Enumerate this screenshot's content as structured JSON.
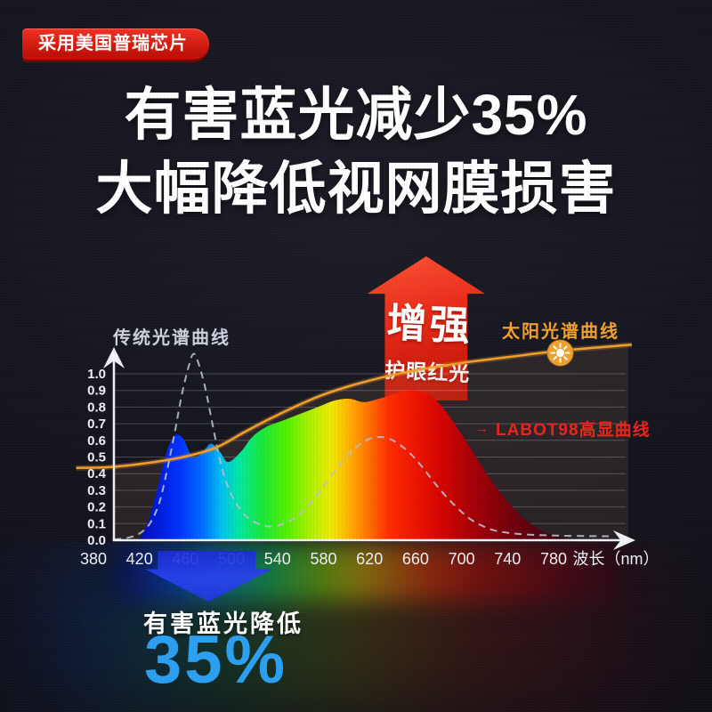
{
  "badge": {
    "label": "采用美国普瑞芯片"
  },
  "title": {
    "line1": "有害蓝光减少35%",
    "line2": "大幅降低视网膜损害"
  },
  "annotations": {
    "increase_arrow": {
      "title": "增强",
      "subtitle": "护眼红光"
    },
    "traditional_label": "传统光谱曲线",
    "solar_label": "太阳光谱曲线",
    "labot_label": "LABOT98高显曲线",
    "decrease": {
      "label": "有害蓝光降低",
      "value": "35%"
    }
  },
  "icons": {
    "labot_pointer": "→",
    "sun": "sun-icon"
  },
  "colors": {
    "background": "#15151f",
    "badge_red_light": "#f23122",
    "badge_red_dark": "#c01007",
    "arrow_red": "#e82815",
    "solar_orange": "#f2a02a",
    "labot_red": "#e8251c",
    "traditional_gray": "#b9bfce",
    "stat_blue": "#2aa0f2",
    "axis_white": "#f2f3f7"
  },
  "chart_data": {
    "type": "area",
    "title": "",
    "xlabel": "波长（nm）",
    "ylabel": "",
    "x_ticks": [
      "380",
      "420",
      "460",
      "500",
      "540",
      "580",
      "620",
      "660",
      "700",
      "740",
      "780"
    ],
    "y_ticks": [
      "1.0",
      "0.9",
      "0.8",
      "0.7",
      "0.6",
      "0.5",
      "0.4",
      "0.3",
      "0.2",
      "0.1",
      "0.0"
    ],
    "xlim": [
      380,
      780
    ],
    "ylim": [
      0.0,
      1.0
    ],
    "grid": true,
    "legend_position": "inline-labels",
    "series": [
      {
        "name": "LABOT98高显曲线",
        "style": "area-spectrum",
        "color": "spectrum-gradient",
        "points": [
          [
            413,
            0
          ],
          [
            421,
            0.02
          ],
          [
            428,
            0.12
          ],
          [
            436,
            0.32
          ],
          [
            444,
            0.54
          ],
          [
            451,
            0.63
          ],
          [
            458,
            0.61
          ],
          [
            466,
            0.5
          ],
          [
            474,
            0.52
          ],
          [
            482,
            0.58
          ],
          [
            490,
            0.53
          ],
          [
            497,
            0.47
          ],
          [
            508,
            0.53
          ],
          [
            518,
            0.62
          ],
          [
            530,
            0.68
          ],
          [
            545,
            0.72
          ],
          [
            560,
            0.76
          ],
          [
            575,
            0.8
          ],
          [
            590,
            0.84
          ],
          [
            603,
            0.85
          ],
          [
            615,
            0.83
          ],
          [
            628,
            0.85
          ],
          [
            642,
            0.88
          ],
          [
            656,
            0.9
          ],
          [
            670,
            0.88
          ],
          [
            682,
            0.81
          ],
          [
            694,
            0.7
          ],
          [
            706,
            0.57
          ],
          [
            718,
            0.44
          ],
          [
            730,
            0.32
          ],
          [
            744,
            0.2
          ],
          [
            758,
            0.11
          ],
          [
            772,
            0.05
          ],
          [
            788,
            0.015
          ],
          [
            806,
            0
          ]
        ]
      },
      {
        "name": "传统光谱曲线",
        "style": "dashed-line",
        "color": "#b9bfce",
        "points": [
          [
            398,
            0.005
          ],
          [
            410,
            0.015
          ],
          [
            420,
            0.04
          ],
          [
            429,
            0.1
          ],
          [
            437,
            0.22
          ],
          [
            444,
            0.42
          ],
          [
            451,
            0.66
          ],
          [
            457,
            0.88
          ],
          [
            463,
            1.05
          ],
          [
            467,
            1.12
          ],
          [
            471,
            1.07
          ],
          [
            477,
            0.92
          ],
          [
            484,
            0.68
          ],
          [
            490,
            0.48
          ],
          [
            497,
            0.32
          ],
          [
            505,
            0.21
          ],
          [
            515,
            0.13
          ],
          [
            527,
            0.09
          ],
          [
            538,
            0.085
          ],
          [
            549,
            0.11
          ],
          [
            560,
            0.16
          ],
          [
            572,
            0.25
          ],
          [
            584,
            0.36
          ],
          [
            596,
            0.47
          ],
          [
            607,
            0.55
          ],
          [
            617,
            0.6
          ],
          [
            627,
            0.62
          ],
          [
            637,
            0.61
          ],
          [
            647,
            0.57
          ],
          [
            657,
            0.51
          ],
          [
            667,
            0.43
          ],
          [
            677,
            0.34
          ],
          [
            687,
            0.26
          ],
          [
            697,
            0.19
          ],
          [
            707,
            0.13
          ],
          [
            717,
            0.09
          ],
          [
            728,
            0.06
          ],
          [
            740,
            0.045
          ],
          [
            755,
            0.035
          ],
          [
            772,
            0.03
          ],
          [
            790,
            0.027
          ],
          [
            810,
            0.025
          ],
          [
            828,
            0.024
          ]
        ]
      },
      {
        "name": "太阳光谱曲线",
        "style": "line",
        "color": "#f2a02a",
        "points": [
          [
            365,
            0.435
          ],
          [
            395,
            0.44
          ],
          [
            428,
            0.465
          ],
          [
            458,
            0.5
          ],
          [
            486,
            0.555
          ],
          [
            510,
            0.645
          ],
          [
            532,
            0.725
          ],
          [
            556,
            0.805
          ],
          [
            578,
            0.87
          ],
          [
            602,
            0.925
          ],
          [
            632,
            0.98
          ],
          [
            663,
            1.025
          ],
          [
            700,
            1.065
          ],
          [
            740,
            1.1
          ],
          [
            788,
            1.14
          ],
          [
            848,
            1.175
          ]
        ]
      }
    ]
  }
}
